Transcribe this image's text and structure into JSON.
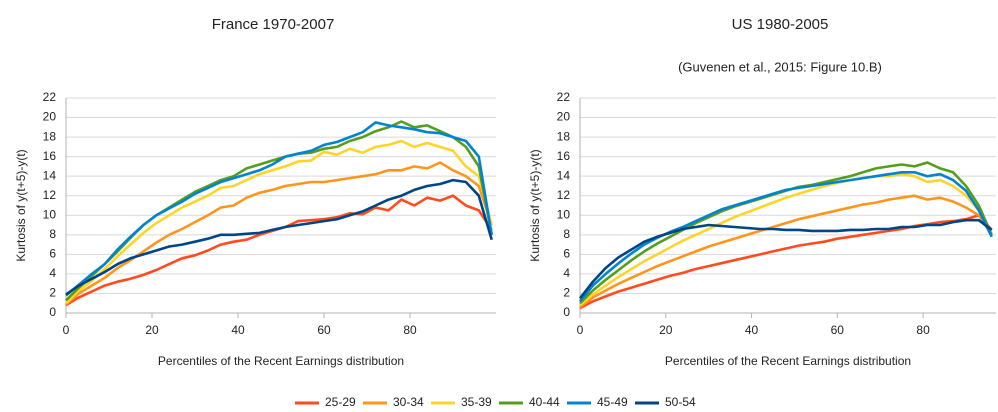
{
  "legend": [
    {
      "name": "25-29",
      "color": "#ff4b1f"
    },
    {
      "name": "30-34",
      "color": "#ff951c"
    },
    {
      "name": "35-39",
      "color": "#ffd428"
    },
    {
      "name": "40-44",
      "color": "#579d1c"
    },
    {
      "name": "45-49",
      "color": "#0084d1"
    },
    {
      "name": "50-54",
      "color": "#004586"
    }
  ],
  "chart_data": [
    {
      "type": "line",
      "title": "France 1970-2007",
      "x_label": "Percentiles of the Recent Earnings distribution",
      "y_label": "Kurtosis of y(t+5)-y(t)",
      "xlim": [
        0,
        100
      ],
      "xticks": [
        0,
        20,
        40,
        60,
        80
      ],
      "ylim": [
        0,
        22
      ],
      "yticks": [
        0,
        2,
        4,
        6,
        8,
        10,
        12,
        14,
        16,
        18,
        20,
        22
      ],
      "grid": true,
      "x": [
        0,
        3,
        6,
        9,
        12,
        15,
        18,
        21,
        24,
        27,
        30,
        33,
        36,
        39,
        42,
        45,
        48,
        51,
        54,
        57,
        60,
        63,
        66,
        69,
        72,
        75,
        78,
        81,
        84,
        87,
        90,
        93,
        96,
        99
      ],
      "series": [
        {
          "values": [
            0.8,
            1.6,
            2.2,
            2.8,
            3.2,
            3.5,
            3.9,
            4.4,
            5.0,
            5.6,
            5.9,
            6.4,
            7.0,
            7.3,
            7.5,
            8.0,
            8.4,
            8.8,
            9.4,
            9.5,
            9.6,
            9.8,
            10.2,
            10.1,
            10.8,
            10.5,
            11.6,
            11.0,
            11.8,
            11.5,
            12.0,
            11.0,
            10.5,
            8.5
          ]
        },
        {
          "values": [
            0.9,
            2.0,
            2.8,
            3.6,
            4.6,
            5.4,
            6.3,
            7.2,
            8.0,
            8.6,
            9.3,
            10.0,
            10.8,
            11.0,
            11.8,
            12.3,
            12.6,
            13.0,
            13.2,
            13.4,
            13.4,
            13.6,
            13.8,
            14.0,
            14.2,
            14.6,
            14.6,
            15.0,
            14.8,
            15.4,
            14.6,
            14.0,
            13.0,
            9.0
          ]
        },
        {
          "values": [
            1.0,
            2.3,
            3.3,
            4.5,
            5.8,
            7.0,
            8.2,
            9.2,
            10.0,
            10.8,
            11.4,
            12.0,
            12.8,
            13.0,
            13.6,
            14.2,
            14.6,
            15.0,
            15.5,
            15.6,
            16.5,
            16.2,
            16.8,
            16.4,
            17.0,
            17.2,
            17.6,
            17.0,
            17.4,
            17.0,
            16.6,
            15.0,
            14.0,
            9.0
          ]
        },
        {
          "values": [
            1.3,
            2.6,
            3.8,
            5.0,
            6.3,
            7.7,
            9.0,
            10.0,
            10.8,
            11.6,
            12.4,
            13.0,
            13.6,
            14.0,
            14.8,
            15.2,
            15.6,
            16.0,
            16.3,
            16.4,
            16.8,
            17.0,
            17.6,
            18.0,
            18.6,
            19.0,
            19.6,
            19.0,
            19.2,
            18.6,
            18.0,
            17.0,
            15.0,
            8.0
          ]
        },
        {
          "values": [
            1.8,
            2.9,
            4.0,
            5.0,
            6.5,
            7.8,
            9.0,
            10.0,
            10.7,
            11.4,
            12.2,
            12.8,
            13.4,
            13.8,
            14.2,
            14.6,
            15.2,
            16.0,
            16.3,
            16.6,
            17.2,
            17.5,
            18.0,
            18.5,
            19.5,
            19.2,
            19.0,
            18.8,
            18.5,
            18.4,
            18.0,
            17.6,
            16.0,
            8.0
          ]
        },
        {
          "values": [
            1.9,
            2.8,
            3.5,
            4.2,
            5.0,
            5.6,
            6.0,
            6.4,
            6.8,
            7.0,
            7.3,
            7.6,
            8.0,
            8.0,
            8.1,
            8.2,
            8.5,
            8.8,
            9.0,
            9.2,
            9.4,
            9.6,
            10.0,
            10.4,
            11.0,
            11.6,
            12.0,
            12.6,
            13.0,
            13.2,
            13.6,
            13.4,
            12.0,
            7.5
          ]
        }
      ]
    },
    {
      "type": "line",
      "title": "US 1980-2005",
      "subtitle": "(Guvenen et al., 2015: Figure 10.B)",
      "x_label": "Percentiles of the Recent Earnings distribution",
      "y_label": "Kurtosis of y(t+5)-y(t)",
      "xlim": [
        0,
        97
      ],
      "xticks": [
        0,
        20,
        40,
        60,
        80
      ],
      "ylim": [
        0,
        22
      ],
      "yticks": [
        0,
        2,
        4,
        6,
        8,
        10,
        12,
        14,
        16,
        18,
        20,
        22
      ],
      "grid": true,
      "x": [
        0,
        3,
        6,
        9,
        12,
        15,
        18,
        21,
        24,
        27,
        30,
        33,
        36,
        39,
        42,
        45,
        48,
        51,
        54,
        57,
        60,
        63,
        66,
        69,
        72,
        75,
        78,
        81,
        84,
        87,
        90,
        93,
        96
      ],
      "series": [
        {
          "values": [
            0.5,
            1.2,
            1.7,
            2.2,
            2.6,
            3.0,
            3.4,
            3.8,
            4.1,
            4.5,
            4.8,
            5.1,
            5.4,
            5.7,
            6.0,
            6.3,
            6.6,
            6.9,
            7.1,
            7.3,
            7.6,
            7.8,
            8.0,
            8.2,
            8.4,
            8.6,
            8.9,
            9.1,
            9.3,
            9.4,
            9.6,
            10.0,
            8.5
          ]
        },
        {
          "values": [
            0.6,
            1.6,
            2.3,
            3.0,
            3.6,
            4.2,
            4.8,
            5.3,
            5.8,
            6.3,
            6.8,
            7.2,
            7.6,
            8.0,
            8.4,
            8.8,
            9.2,
            9.6,
            9.9,
            10.2,
            10.5,
            10.8,
            11.1,
            11.3,
            11.6,
            11.8,
            12.0,
            11.6,
            11.8,
            11.4,
            10.8,
            10.0,
            8.0
          ]
        },
        {
          "values": [
            0.8,
            1.9,
            2.8,
            3.7,
            4.5,
            5.3,
            6.0,
            6.7,
            7.4,
            8.0,
            8.6,
            9.2,
            9.8,
            10.3,
            10.8,
            11.3,
            11.8,
            12.2,
            12.6,
            13.0,
            13.3,
            13.6,
            13.8,
            14.0,
            14.0,
            14.2,
            14.0,
            13.4,
            13.6,
            13.0,
            12.0,
            10.5,
            8.0
          ]
        },
        {
          "values": [
            1.0,
            2.3,
            3.4,
            4.4,
            5.4,
            6.3,
            7.1,
            7.8,
            8.5,
            9.2,
            9.8,
            10.4,
            10.9,
            11.3,
            11.7,
            12.1,
            12.5,
            12.9,
            13.1,
            13.4,
            13.7,
            14.0,
            14.4,
            14.8,
            15.0,
            15.2,
            15.0,
            15.4,
            14.8,
            14.4,
            13.0,
            11.0,
            8.0
          ]
        },
        {
          "values": [
            1.2,
            2.8,
            4.0,
            5.1,
            6.1,
            7.0,
            7.7,
            8.3,
            8.8,
            9.4,
            10.0,
            10.6,
            11.0,
            11.4,
            11.8,
            12.2,
            12.6,
            12.8,
            13.0,
            13.2,
            13.4,
            13.6,
            13.8,
            14.0,
            14.2,
            14.4,
            14.4,
            14.0,
            14.2,
            13.6,
            12.5,
            10.5,
            7.8
          ]
        },
        {
          "values": [
            1.5,
            3.2,
            4.6,
            5.7,
            6.5,
            7.3,
            7.8,
            8.2,
            8.6,
            8.8,
            9.0,
            8.9,
            8.8,
            8.7,
            8.6,
            8.6,
            8.5,
            8.5,
            8.4,
            8.4,
            8.4,
            8.5,
            8.5,
            8.6,
            8.6,
            8.8,
            8.8,
            9.0,
            9.0,
            9.3,
            9.5,
            9.5,
            8.5
          ]
        }
      ]
    }
  ]
}
